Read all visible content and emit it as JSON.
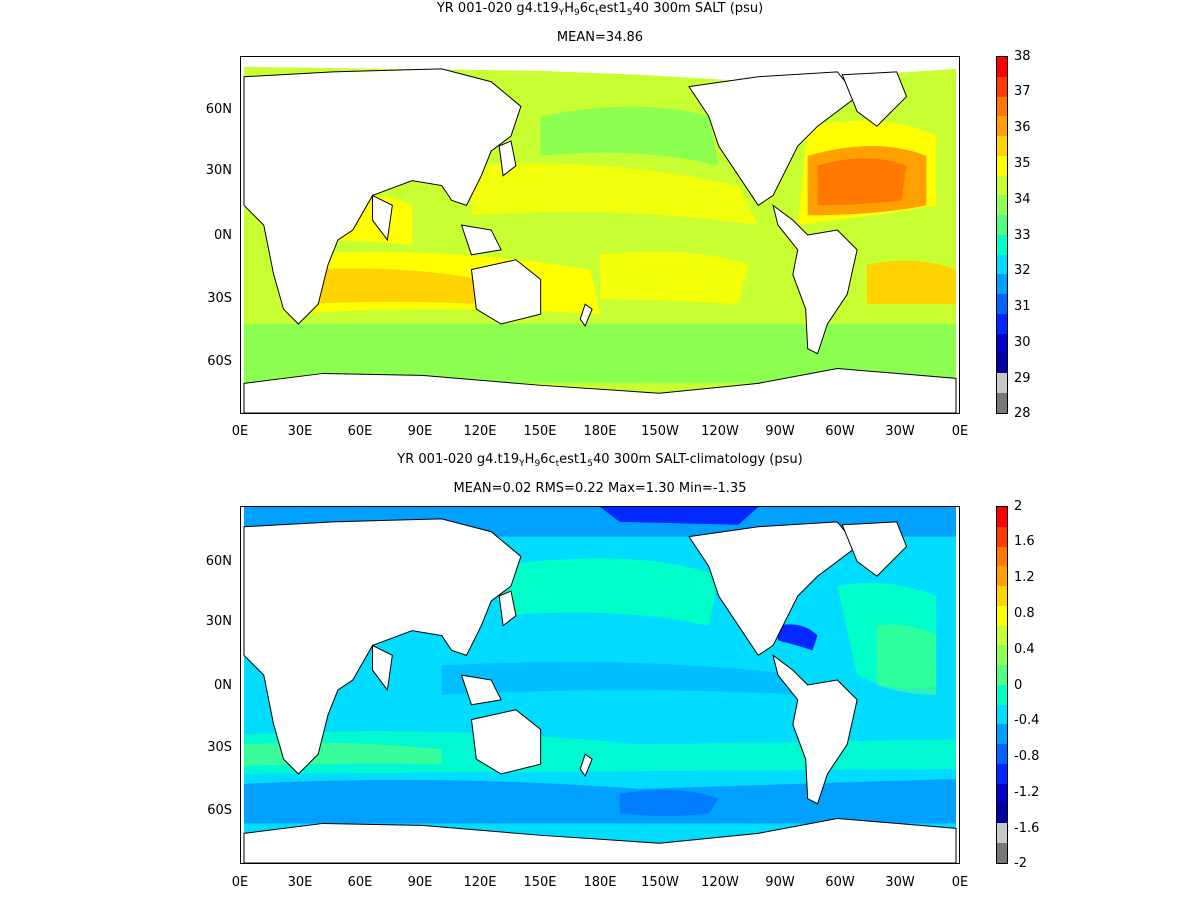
{
  "top": {
    "title_prefix": "YR 001-020 g4.t19",
    "title_rest": "300m SALT (psu)",
    "subtitle": "MEAN=34.86",
    "colorbar_labels": [
      "38",
      "37",
      "36",
      "35",
      "34",
      "33",
      "32",
      "31",
      "30",
      "29",
      "28"
    ]
  },
  "bottom": {
    "title_prefix": "YR 001-020 g4.t19",
    "title_rest": "300m SALT-climatology (psu)",
    "subtitle": "MEAN=0.02   RMS=0.22   Max=1.30   Min=-1.35",
    "colorbar_labels": [
      "2",
      "1.6",
      "1.2",
      "0.8",
      "0.4",
      "0",
      "-0.4",
      "-0.8",
      "-1.2",
      "-1.6",
      "-2"
    ]
  },
  "title_parts": {
    "y": "Y",
    "h": "H",
    "nine": "9",
    "six_c": "6c",
    "t": "t",
    "est1": "est1",
    "five": "5",
    "forty": "40"
  },
  "x_ticks": [
    "0E",
    "30E",
    "60E",
    "90E",
    "120E",
    "150E",
    "180E",
    "150W",
    "120W",
    "90W",
    "60W",
    "30W",
    "0E"
  ],
  "y_ticks": [
    "60N",
    "30N",
    "0N",
    "30S",
    "60S"
  ],
  "colors": {
    "top_scale": [
      "#ff0000",
      "#ff3c00",
      "#ff7800",
      "#ffa000",
      "#ffd200",
      "#ffff00",
      "#c8ff32",
      "#8cff50",
      "#50ff82",
      "#00ffc8",
      "#00dcff",
      "#00a0ff",
      "#0064ff",
      "#0028ff",
      "#0000c8",
      "#0000a0",
      "#c8c8c8",
      "#787878"
    ],
    "bottom_scale": [
      "#ff0000",
      "#ff3c00",
      "#ff7800",
      "#ffa000",
      "#ffd200",
      "#ffff00",
      "#c8ff32",
      "#8cff50",
      "#50ff82",
      "#00ffc8",
      "#00dcff",
      "#00a0ff",
      "#0064ff",
      "#0028ff",
      "#0000c8",
      "#0000a0",
      "#c8c8c8",
      "#787878"
    ]
  }
}
